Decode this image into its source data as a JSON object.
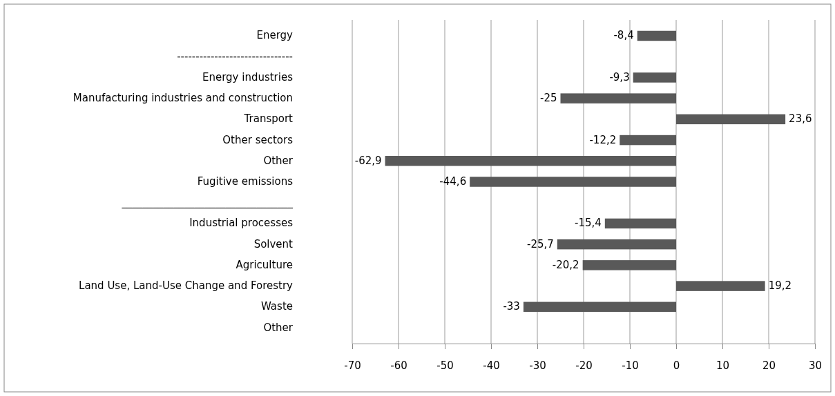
{
  "chart_data": {
    "type": "bar",
    "orientation": "horizontal",
    "categories": [
      "Energy",
      "-------------------------------",
      "Energy industries",
      "Manufacturing industries and construction",
      "Transport",
      "Other sectors",
      "Other",
      "Fugitive emissions",
      "_________________________________",
      "Industrial processes",
      "Solvent",
      "Agriculture",
      "Land Use, Land-Use Change and Forestry",
      "Waste",
      "Other"
    ],
    "values": [
      -8.4,
      null,
      -9.3,
      -25,
      23.6,
      -12.2,
      -62.9,
      -44.6,
      null,
      -15.4,
      -25.7,
      -20.2,
      19.2,
      -33,
      null
    ],
    "value_labels": [
      "-8,4",
      null,
      "-9,3",
      "-25",
      "23,6",
      "-12,2",
      "-62,9",
      "-44,6",
      null,
      "-15,4",
      "-25,7",
      "-20,2",
      "19,2",
      "-33",
      null
    ],
    "color": "#595959",
    "xlim": [
      -70,
      30
    ],
    "xticks": [
      -70,
      -60,
      -50,
      -40,
      -30,
      -20,
      -10,
      0,
      10,
      20,
      30
    ],
    "grid": "x"
  }
}
